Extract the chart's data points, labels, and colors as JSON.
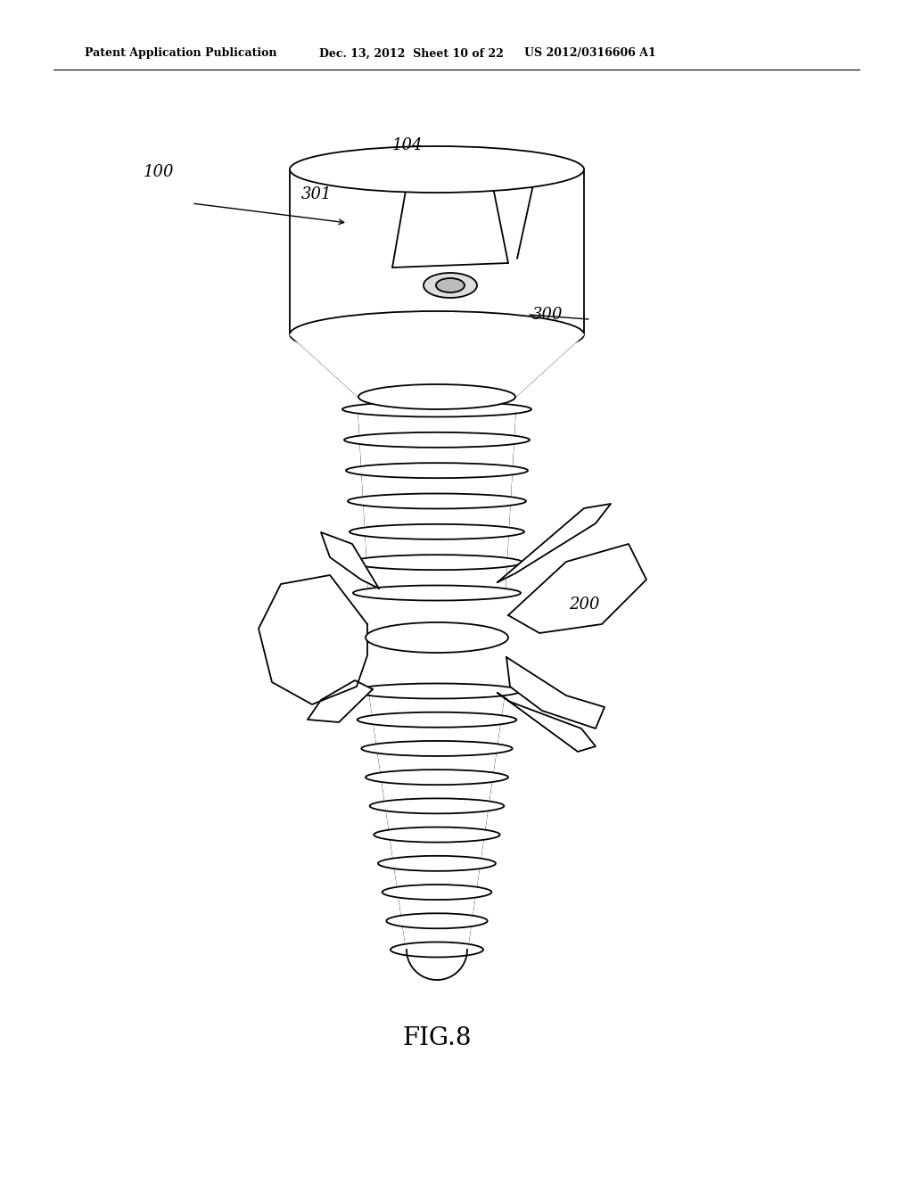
{
  "title": "FIG.8",
  "header_left": "Patent Application Publication",
  "header_middle": "Dec. 13, 2012  Sheet 10 of 22",
  "header_right": "US 2012/0316606 A1",
  "label_100": "100",
  "label_104": "104",
  "label_300": "300",
  "label_301": "301",
  "label_200": "200",
  "bg_color": "#ffffff",
  "line_color": "#000000",
  "fig_width": 10.24,
  "fig_height": 13.2
}
